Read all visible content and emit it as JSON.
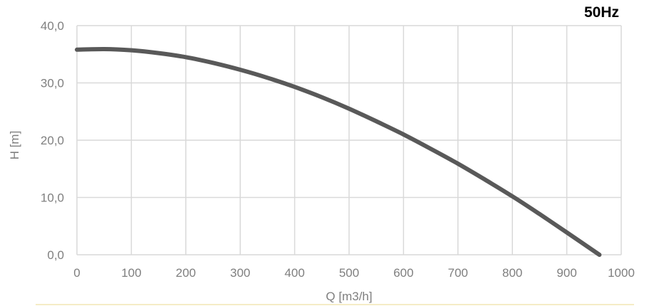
{
  "chart_data": {
    "type": "line",
    "title": "",
    "badge": "50Hz",
    "xlabel": "Q [m3/h]",
    "ylabel": "H [m]",
    "xlim": [
      0,
      1000
    ],
    "ylim": [
      0,
      40
    ],
    "x_ticks": [
      0,
      100,
      200,
      300,
      400,
      500,
      600,
      700,
      800,
      900,
      1000
    ],
    "x_tick_labels": [
      "0",
      "100",
      "200",
      "300",
      "400",
      "500",
      "600",
      "700",
      "800",
      "900",
      "1000"
    ],
    "y_ticks": [
      0,
      10,
      20,
      30,
      40
    ],
    "y_tick_labels": [
      "0,0",
      "10,0",
      "20,0",
      "30,0",
      "40,0"
    ],
    "grid": true,
    "legend": "none",
    "line_color": "#595959",
    "grid_color": "#d9d9d9",
    "footer_line_color": "#f2e6b3",
    "series": [
      {
        "x": [
          0,
          50,
          100,
          150,
          200,
          250,
          300,
          350,
          400,
          450,
          500,
          550,
          600,
          650,
          700,
          750,
          800,
          850,
          900,
          960
        ],
        "y": [
          35.8,
          35.9,
          35.7,
          35.2,
          34.5,
          33.5,
          32.3,
          30.9,
          29.3,
          27.5,
          25.5,
          23.3,
          21.0,
          18.5,
          15.9,
          13.1,
          10.2,
          7.1,
          3.9,
          0.0
        ]
      }
    ]
  }
}
